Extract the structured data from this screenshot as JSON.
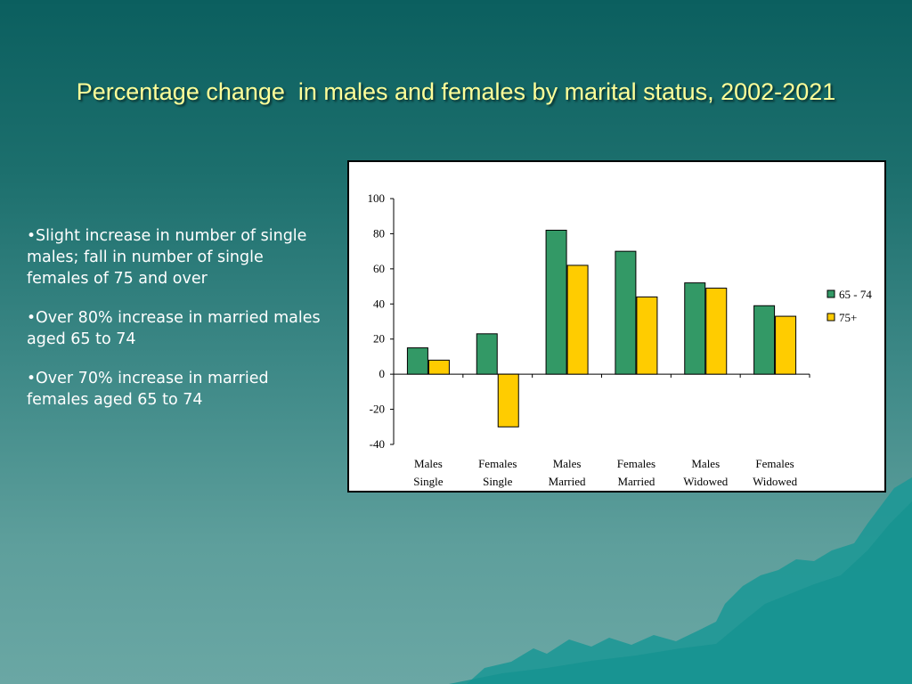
{
  "slide": {
    "title": "Percentage change  in males and females by marital status, 2002-2021"
  },
  "bullets": [
    {
      "marker": "•",
      "text": "Slight increase in number of single males; fall in number of single females of 75 and over"
    },
    {
      "marker": "•",
      "text": "Over 80% increase in married males aged 65 to 74"
    },
    {
      "marker": "•",
      "text": "Over 70% increase in married females aged 65 to 74"
    }
  ],
  "colors": {
    "series_65_74": "#339966",
    "series_75_plus": "#ffcc00",
    "title_text": "#ffff99",
    "background_top": "#0b5f5f",
    "background_bottom": "#6aa7a4"
  },
  "chart_data": {
    "type": "bar",
    "categories": [
      [
        "Males",
        "Single"
      ],
      [
        "Females",
        "Single"
      ],
      [
        "Males",
        "Married"
      ],
      [
        "Females",
        "Married"
      ],
      [
        "Males",
        "Widowed"
      ],
      [
        "Females",
        "Widowed"
      ]
    ],
    "series": [
      {
        "name": "65 - 74",
        "values": [
          15,
          23,
          82,
          70,
          52,
          39
        ]
      },
      {
        "name": "75+",
        "values": [
          8,
          -30,
          62,
          44,
          49,
          33
        ]
      }
    ],
    "ylim": [
      -40,
      100
    ],
    "yticks": [
      -40,
      -20,
      0,
      20,
      40,
      60,
      80,
      100
    ],
    "grid": false,
    "legend": "right"
  }
}
